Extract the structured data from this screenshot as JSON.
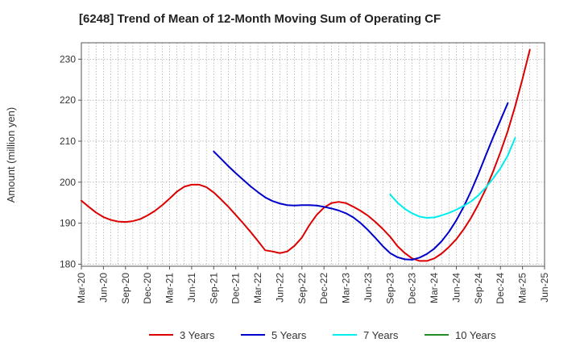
{
  "chart_data": {
    "type": "line",
    "title": "[6248]  Trend of Mean of 12-Month Moving Sum of Operating CF",
    "xlabel": "",
    "ylabel": "Amount (million yen)",
    "ylim": [
      179.5,
      234
    ],
    "yticks": [
      180,
      190,
      200,
      210,
      220,
      230
    ],
    "grid": true,
    "legend_position": "bottom",
    "x_tick_labels": [
      "Mar-20",
      "Jun-20",
      "Sep-20",
      "Dec-20",
      "Mar-21",
      "Jun-21",
      "Sep-21",
      "Dec-21",
      "Mar-22",
      "Jun-22",
      "Sep-22",
      "Dec-22",
      "Mar-23",
      "Jun-23",
      "Sep-23",
      "Dec-23",
      "Mar-24",
      "Jun-24",
      "Sep-24",
      "Dec-24",
      "Mar-25",
      "Jun-25"
    ],
    "x_start": "Mar-20",
    "n_months": 63,
    "series": [
      {
        "name": "3 Years",
        "color": "#dd0000",
        "start_index": 0,
        "values": [
          195.5,
          194,
          192.6,
          191.5,
          190.8,
          190.4,
          190.3,
          190.5,
          191,
          191.9,
          193,
          194.4,
          196,
          197.7,
          198.9,
          199.4,
          199.4,
          198.8,
          197.5,
          195.8,
          194,
          192,
          190,
          187.9,
          185.7,
          183.4,
          183.1,
          182.7,
          183.1,
          184.5,
          186.5,
          189.5,
          192,
          193.8,
          194.9,
          195.2,
          194.9,
          194,
          193,
          191.8,
          190.3,
          188.6,
          186.7,
          184.4,
          182.7,
          181.4,
          180.8,
          180.8,
          181.4,
          182.6,
          184.2,
          186.1,
          188.5,
          191.3,
          194.6,
          198.3,
          202.6,
          207.3,
          212.5,
          218.5,
          225.2,
          232.3
        ]
      },
      {
        "name": "5 Years",
        "color": "#0000cc",
        "start_index": 18,
        "values": [
          207.5,
          205.7,
          203.9,
          202.2,
          200.6,
          199,
          197.6,
          196.3,
          195.4,
          194.8,
          194.4,
          194.3,
          194.4,
          194.4,
          194.3,
          194,
          193.6,
          193.1,
          192.4,
          191.4,
          190,
          188.3,
          186.4,
          184.4,
          182.7,
          181.7,
          181.2,
          181.1,
          181.6,
          182.5,
          183.8,
          185.6,
          187.9,
          190.7,
          194,
          197.8,
          202,
          206.5,
          210.9,
          215.1,
          219.3
        ]
      },
      {
        "name": "7 Years",
        "color": "#00eeee",
        "start_index": 42,
        "values": [
          197,
          195,
          193.5,
          192.4,
          191.6,
          191.3,
          191.4,
          191.9,
          192.5,
          193.3,
          194.2,
          195.3,
          196.8,
          198.7,
          200.9,
          203.4,
          206.5,
          210.8
        ]
      },
      {
        "name": "10 Years",
        "color": "#228b22",
        "start_index": 0,
        "values": []
      }
    ]
  }
}
